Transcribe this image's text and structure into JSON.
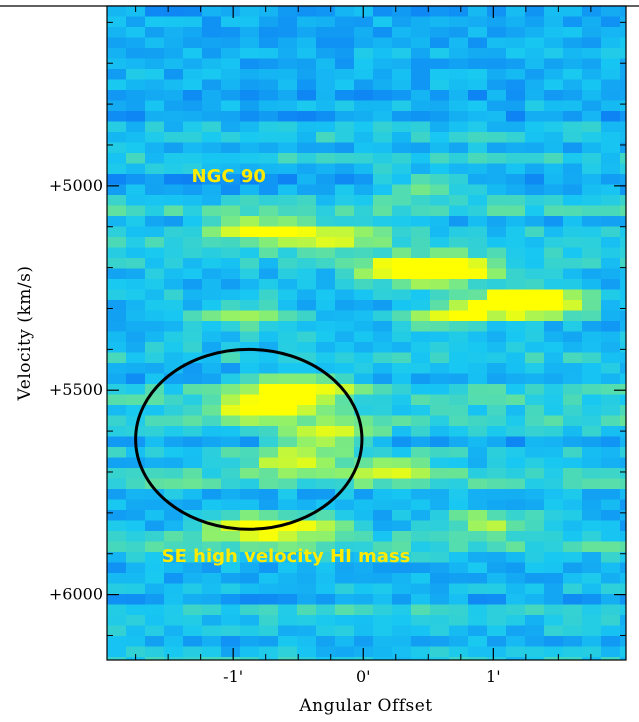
{
  "chart_data": {
    "type": "heatmap",
    "title": "",
    "xlabel": "Angular Offset",
    "ylabel": "Velocity (km/s)",
    "xlim": [
      -1.97,
      2.02
    ],
    "ylim": [
      6160,
      4560
    ],
    "x_ticks": [
      {
        "value": -1,
        "label": "-1'"
      },
      {
        "value": 0,
        "label": "0'"
      },
      {
        "value": 1,
        "label": "1'"
      }
    ],
    "y_ticks": [
      {
        "value": 5000,
        "label": "+5000"
      },
      {
        "value": 5500,
        "label": "+5500"
      },
      {
        "value": 6000,
        "label": "+6000"
      }
    ],
    "colormap": [
      "#1e1ee0",
      "#0a6cf5",
      "#18c8f2",
      "#8cf06e",
      "#ffff00"
    ],
    "annotations": [
      {
        "text": "NGC 90",
        "x": -1.32,
        "y": 4990,
        "color": "#ffeb00"
      },
      {
        "text": "SE high velocity HI mass",
        "x": -1.55,
        "y": 5920,
        "color": "#ffeb00"
      }
    ],
    "ellipse": {
      "cx": -0.88,
      "cy": 5620,
      "rx": 0.87,
      "ry": 220,
      "color": "#000000"
    },
    "hotspots": [
      {
        "x": -0.75,
        "y": 5530,
        "level": 1.0
      },
      {
        "x": -0.5,
        "y": 5480,
        "level": 0.8
      },
      {
        "x": -0.3,
        "y": 5600,
        "level": 0.6
      },
      {
        "x": 0.3,
        "y": 5200,
        "level": 0.9
      },
      {
        "x": 0.6,
        "y": 5200,
        "level": 0.85
      },
      {
        "x": 0.6,
        "y": 5310,
        "level": 0.7
      },
      {
        "x": 1.1,
        "y": 5280,
        "level": 0.9
      },
      {
        "x": 1.3,
        "y": 5280,
        "level": 0.8
      },
      {
        "x": -0.8,
        "y": 5100,
        "level": 0.7
      },
      {
        "x": -0.3,
        "y": 5120,
        "level": 0.6
      },
      {
        "x": -0.9,
        "y": 5820,
        "level": 0.7
      },
      {
        "x": -0.5,
        "y": 5820,
        "level": 0.6
      },
      {
        "x": 0.9,
        "y": 5810,
        "level": 0.5
      },
      {
        "x": 0.2,
        "y": 5680,
        "level": 0.5
      },
      {
        "x": -0.6,
        "y": 5660,
        "level": 0.6
      },
      {
        "x": -1.0,
        "y": 5310,
        "level": 0.5
      },
      {
        "x": 0.4,
        "y": 5000,
        "level": 0.4
      }
    ]
  }
}
